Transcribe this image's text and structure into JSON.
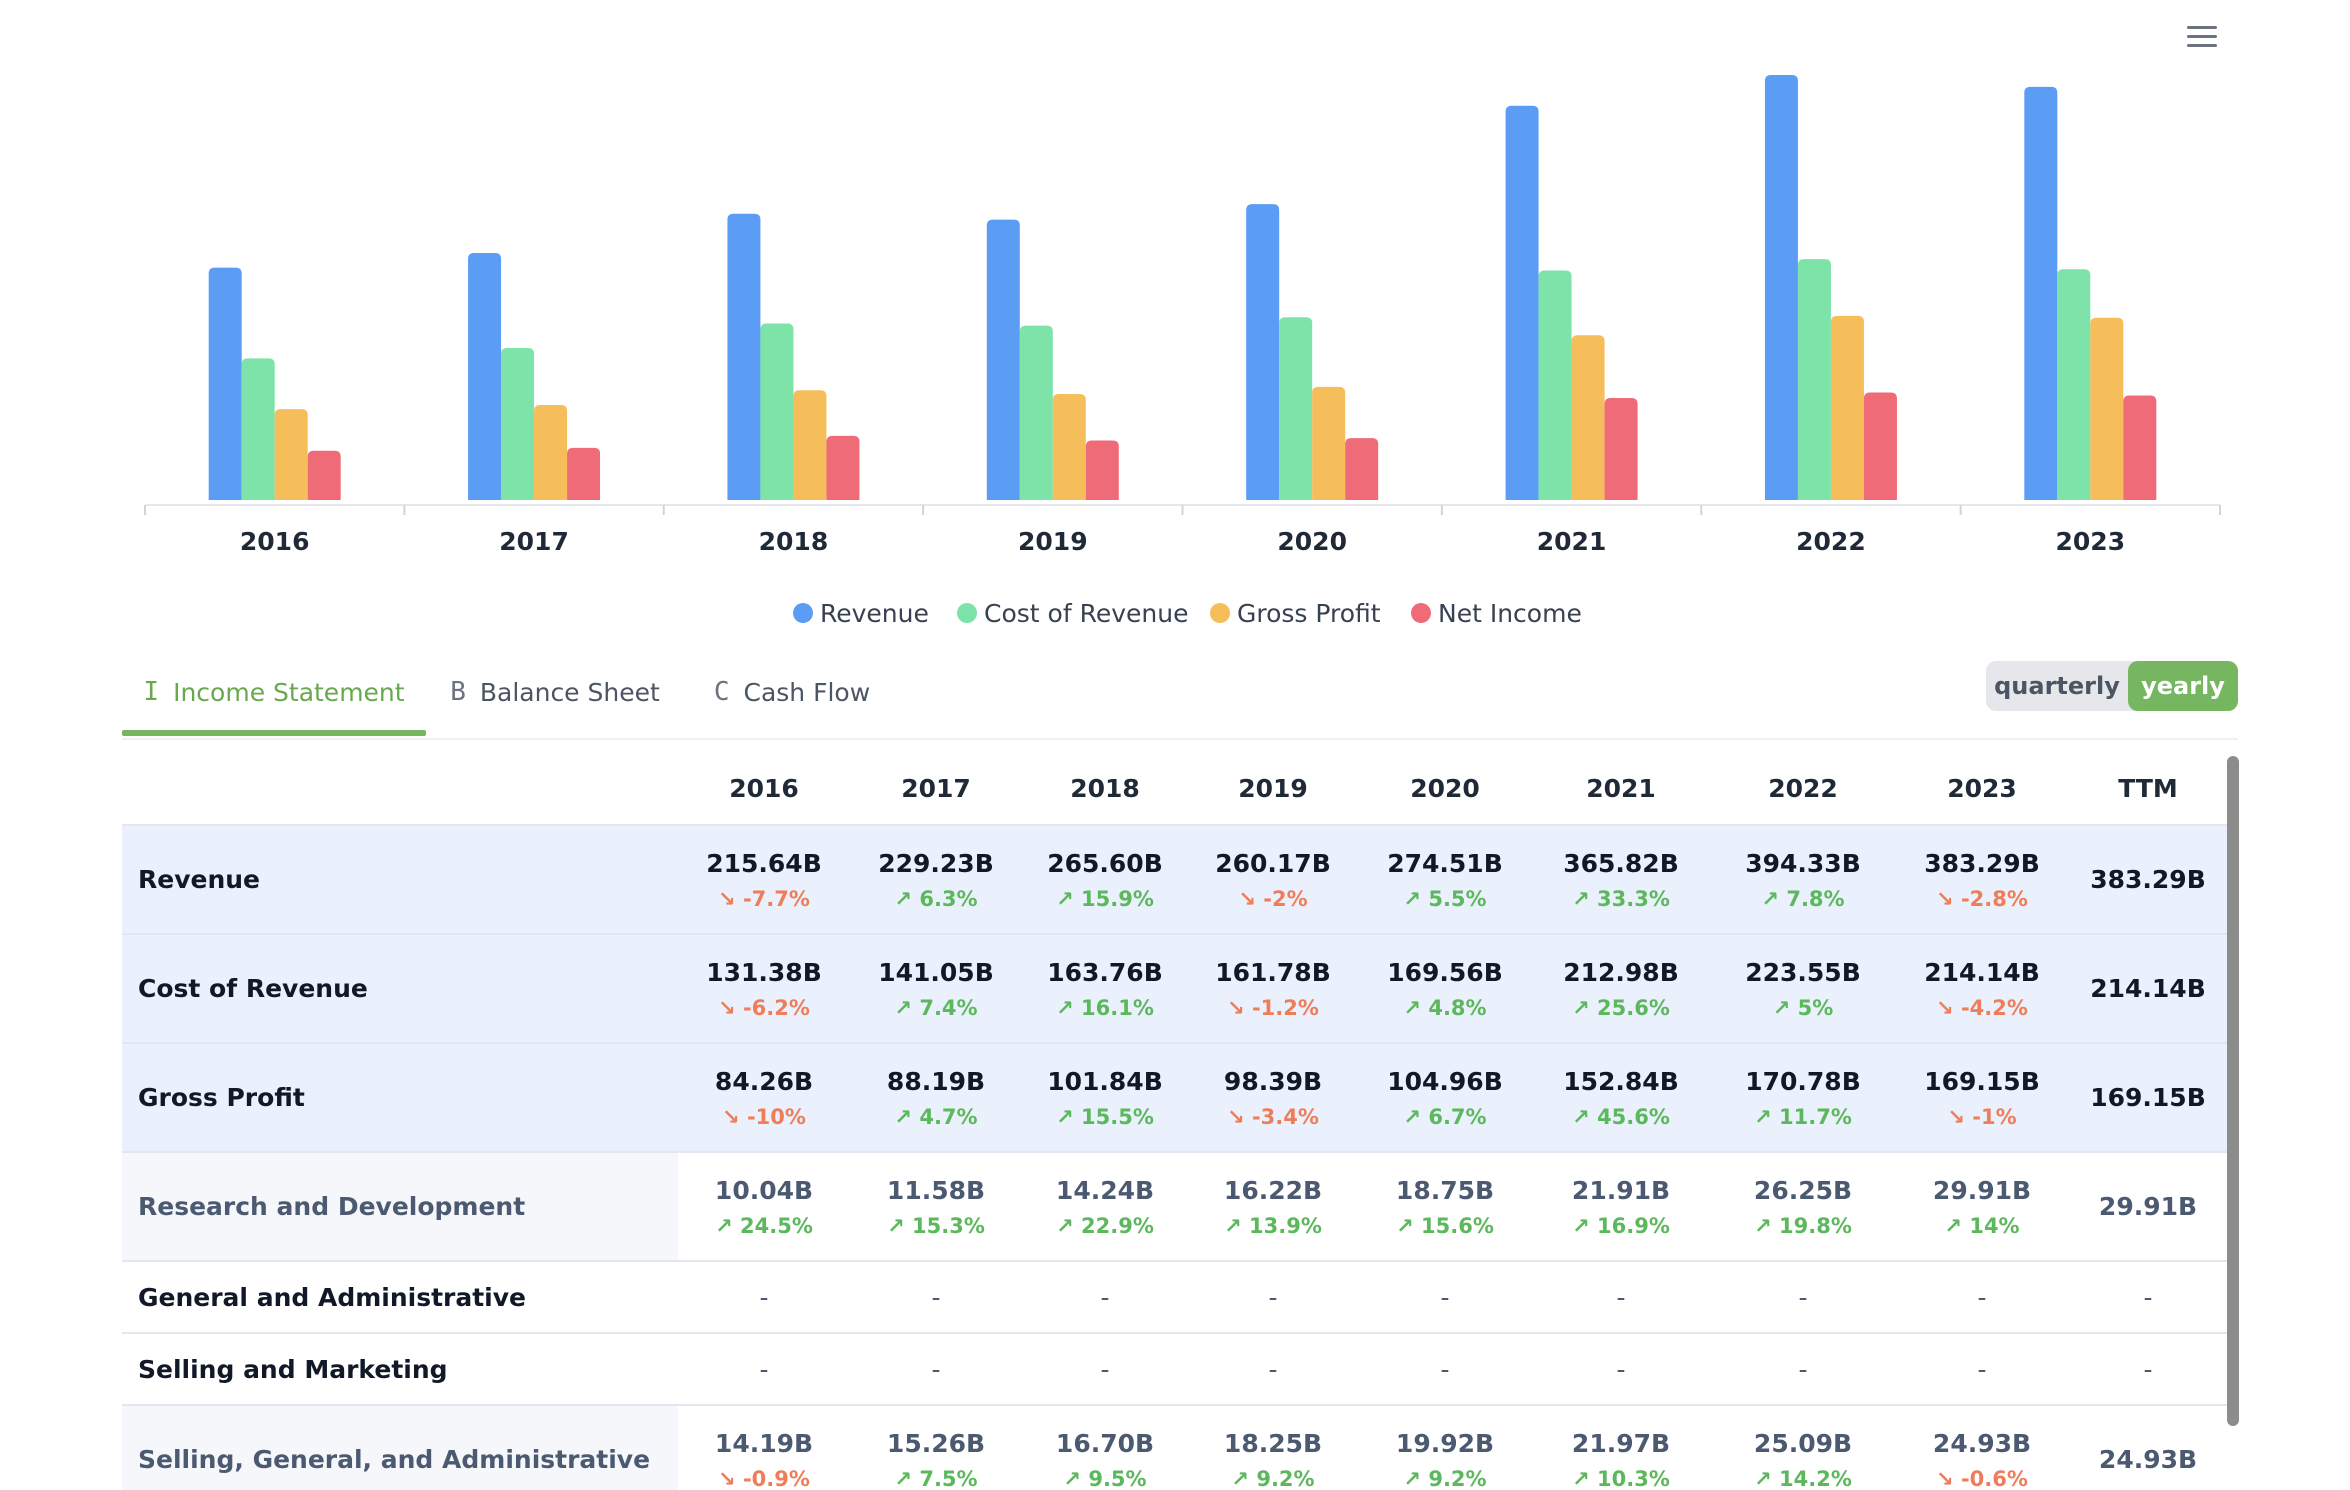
{
  "menu": {
    "icon": "hamburger-menu-icon"
  },
  "chart_data": {
    "type": "bar",
    "categories": [
      "2016",
      "2017",
      "2018",
      "2019",
      "2020",
      "2021",
      "2022",
      "2023"
    ],
    "series": [
      {
        "name": "Revenue",
        "color": "#5b9cf5",
        "values": [
          215.64,
          229.23,
          265.6,
          260.17,
          274.51,
          365.82,
          394.33,
          383.29
        ]
      },
      {
        "name": "Cost of Revenue",
        "color": "#7ee3a8",
        "values": [
          131.38,
          141.05,
          163.76,
          161.78,
          169.56,
          212.98,
          223.55,
          214.14
        ]
      },
      {
        "name": "Gross Profit",
        "color": "#f6bd5b",
        "values": [
          84.26,
          88.19,
          101.84,
          98.39,
          104.96,
          152.84,
          170.78,
          169.15
        ]
      },
      {
        "name": "Net Income",
        "color": "#ef6b78",
        "values": [
          45.69,
          48.35,
          59.53,
          55.26,
          57.41,
          94.68,
          99.8,
          97.0
        ]
      }
    ],
    "ylim": [
      0,
      400
    ],
    "legend_position": "bottom-center",
    "grid": false
  },
  "tabs": [
    {
      "icon": "I",
      "label": "Income Statement",
      "active": true
    },
    {
      "icon": "B",
      "label": "Balance Sheet",
      "active": false
    },
    {
      "icon": "C",
      "label": "Cash Flow",
      "active": false
    }
  ],
  "period_toggle": {
    "quarterly": "quarterly",
    "yearly": "yearly",
    "selected": "yearly"
  },
  "table": {
    "columns": [
      "2016",
      "2017",
      "2018",
      "2019",
      "2020",
      "2021",
      "2022",
      "2023",
      "TTM"
    ],
    "rows": [
      {
        "label": "Revenue",
        "type": "main",
        "values": [
          "215.64B",
          "229.23B",
          "265.60B",
          "260.17B",
          "274.51B",
          "365.82B",
          "394.33B",
          "383.29B",
          "383.29B"
        ],
        "growth": [
          "-7.7%",
          "6.3%",
          "15.9%",
          "-2%",
          "5.5%",
          "33.3%",
          "7.8%",
          "-2.8%",
          ""
        ]
      },
      {
        "label": "Cost of Revenue",
        "type": "main",
        "values": [
          "131.38B",
          "141.05B",
          "163.76B",
          "161.78B",
          "169.56B",
          "212.98B",
          "223.55B",
          "214.14B",
          "214.14B"
        ],
        "growth": [
          "-6.2%",
          "7.4%",
          "16.1%",
          "-1.2%",
          "4.8%",
          "25.6%",
          "5%",
          "-4.2%",
          ""
        ]
      },
      {
        "label": "Gross Profit",
        "type": "main",
        "values": [
          "84.26B",
          "88.19B",
          "101.84B",
          "98.39B",
          "104.96B",
          "152.84B",
          "170.78B",
          "169.15B",
          "169.15B"
        ],
        "growth": [
          "-10%",
          "4.7%",
          "15.5%",
          "-3.4%",
          "6.7%",
          "45.6%",
          "11.7%",
          "-1%",
          ""
        ]
      },
      {
        "label": "Research and Development",
        "type": "sub",
        "values": [
          "10.04B",
          "11.58B",
          "14.24B",
          "16.22B",
          "18.75B",
          "21.91B",
          "26.25B",
          "29.91B",
          "29.91B"
        ],
        "growth": [
          "24.5%",
          "15.3%",
          "22.9%",
          "13.9%",
          "15.6%",
          "16.9%",
          "19.8%",
          "14%",
          ""
        ]
      },
      {
        "label": "General and Administrative",
        "type": "dash",
        "values": [
          "-",
          "-",
          "-",
          "-",
          "-",
          "-",
          "-",
          "-",
          "-"
        ],
        "growth": [
          "",
          "",
          "",
          "",
          "",
          "",
          "",
          "",
          ""
        ]
      },
      {
        "label": "Selling and Marketing",
        "type": "dash",
        "values": [
          "-",
          "-",
          "-",
          "-",
          "-",
          "-",
          "-",
          "-",
          "-"
        ],
        "growth": [
          "",
          "",
          "",
          "",
          "",
          "",
          "",
          "",
          ""
        ]
      },
      {
        "label": "Selling, General, and Administrative",
        "type": "sub",
        "values": [
          "14.19B",
          "15.26B",
          "16.70B",
          "18.25B",
          "19.92B",
          "21.97B",
          "25.09B",
          "24.93B",
          "24.93B"
        ],
        "growth": [
          "-0.9%",
          "7.5%",
          "9.5%",
          "9.2%",
          "9.2%",
          "10.3%",
          "14.2%",
          "-0.6%",
          ""
        ]
      }
    ]
  }
}
